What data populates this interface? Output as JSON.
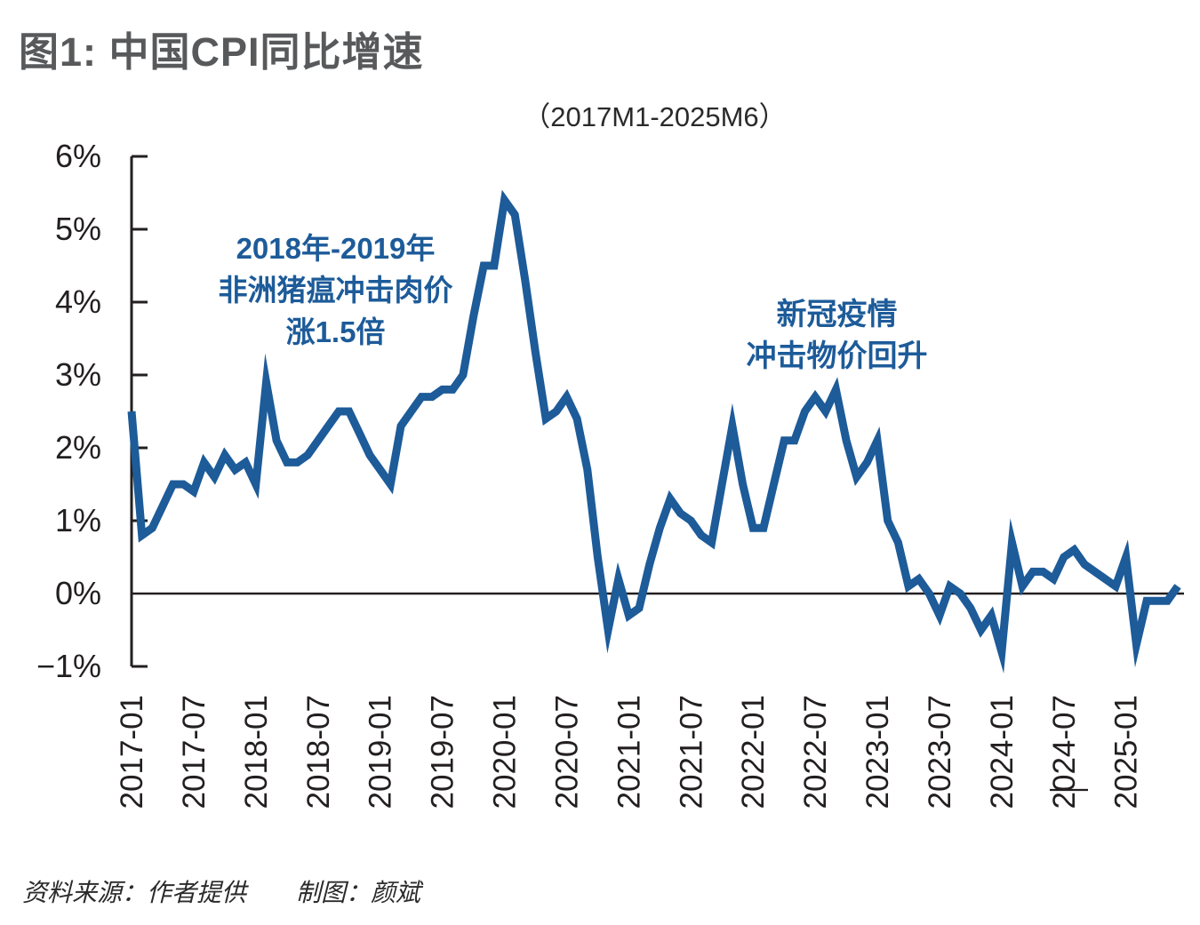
{
  "page": {
    "title": "图1: 中国CPI同比增速",
    "subtitle": "（2017M1-2025M6）",
    "footer": {
      "source_label": "资料来源：作者提供",
      "credit_label": "制图：颜斌"
    }
  },
  "annotations": {
    "swine_fever": {
      "lines": [
        "2018年-2019年",
        "非洲猪瘟冲击肉价",
        "涨1.5倍"
      ]
    },
    "covid": {
      "lines": [
        "新冠疫情",
        "冲击物价回升"
      ]
    }
  },
  "colors": {
    "line": "#1d5b99",
    "axis": "#231f20",
    "title": "#58595b",
    "subtitle": "#2a2a2a",
    "annotation": "#1d5b99",
    "footer": "#2b2b2b"
  },
  "chart_data": {
    "type": "line",
    "title": "图1: 中国CPI同比增速",
    "subtitle": "（2017M1-2025M6）",
    "xlabel": "",
    "ylabel": "",
    "ylim": [
      -1,
      6
    ],
    "grid": false,
    "legend": false,
    "zero_baseline": true,
    "y_ticks": [
      {
        "value": 6,
        "label": "6%"
      },
      {
        "value": 5,
        "label": "5%"
      },
      {
        "value": 4,
        "label": "4%"
      },
      {
        "value": 3,
        "label": "3%"
      },
      {
        "value": 2,
        "label": "2%"
      },
      {
        "value": 1,
        "label": "1%"
      },
      {
        "value": 0,
        "label": "0%"
      },
      {
        "value": -1,
        "label": "−1%"
      }
    ],
    "x_tick_labels": [
      "2017-01",
      "2017-07",
      "2018-01",
      "2018-07",
      "2019-01",
      "2019-07",
      "2020-01",
      "2020-07",
      "2021-01",
      "2021-07",
      "2022-01",
      "2022-07",
      "2023-01",
      "2023-07",
      "2024-01",
      "2024-07",
      "2025-01"
    ],
    "x_tick_month_step": 6,
    "x": [
      "2017-01",
      "2017-02",
      "2017-03",
      "2017-04",
      "2017-05",
      "2017-06",
      "2017-07",
      "2017-08",
      "2017-09",
      "2017-10",
      "2017-11",
      "2017-12",
      "2018-01",
      "2018-02",
      "2018-03",
      "2018-04",
      "2018-05",
      "2018-06",
      "2018-07",
      "2018-08",
      "2018-09",
      "2018-10",
      "2018-11",
      "2018-12",
      "2019-01",
      "2019-02",
      "2019-03",
      "2019-04",
      "2019-05",
      "2019-06",
      "2019-07",
      "2019-08",
      "2019-09",
      "2019-10",
      "2019-11",
      "2019-12",
      "2020-01",
      "2020-02",
      "2020-03",
      "2020-04",
      "2020-05",
      "2020-06",
      "2020-07",
      "2020-08",
      "2020-09",
      "2020-10",
      "2020-11",
      "2020-12",
      "2021-01",
      "2021-02",
      "2021-03",
      "2021-04",
      "2021-05",
      "2021-06",
      "2021-07",
      "2021-08",
      "2021-09",
      "2021-10",
      "2021-11",
      "2021-12",
      "2022-01",
      "2022-02",
      "2022-03",
      "2022-04",
      "2022-05",
      "2022-06",
      "2022-07",
      "2022-08",
      "2022-09",
      "2022-10",
      "2022-11",
      "2022-12",
      "2023-01",
      "2023-02",
      "2023-03",
      "2023-04",
      "2023-05",
      "2023-06",
      "2023-07",
      "2023-08",
      "2023-09",
      "2023-10",
      "2023-11",
      "2023-12",
      "2024-01",
      "2024-02",
      "2024-03",
      "2024-04",
      "2024-05",
      "2024-06",
      "2024-07",
      "2024-08",
      "2024-09",
      "2024-10",
      "2024-11",
      "2024-12",
      "2025-01",
      "2025-02",
      "2025-03",
      "2025-04",
      "2025-05",
      "2025-06"
    ],
    "series": [
      {
        "name": "中国CPI同比增速",
        "color": "#1d5b99",
        "unit": "%",
        "values": [
          2.5,
          0.8,
          0.9,
          1.2,
          1.5,
          1.5,
          1.4,
          1.8,
          1.6,
          1.9,
          1.7,
          1.8,
          1.5,
          2.9,
          2.1,
          1.8,
          1.8,
          1.9,
          2.1,
          2.3,
          2.5,
          2.5,
          2.2,
          1.9,
          1.7,
          1.5,
          2.3,
          2.5,
          2.7,
          2.7,
          2.8,
          2.8,
          3.0,
          3.8,
          4.5,
          4.5,
          5.4,
          5.2,
          4.3,
          3.3,
          2.4,
          2.5,
          2.7,
          2.4,
          1.7,
          0.5,
          -0.5,
          0.2,
          -0.3,
          -0.2,
          0.4,
          0.9,
          1.3,
          1.1,
          1.0,
          0.8,
          0.7,
          1.5,
          2.3,
          1.5,
          0.9,
          0.9,
          1.5,
          2.1,
          2.1,
          2.5,
          2.7,
          2.5,
          2.8,
          2.1,
          1.6,
          1.8,
          2.1,
          1.0,
          0.7,
          0.1,
          0.2,
          0.0,
          -0.3,
          0.1,
          0.0,
          -0.2,
          -0.5,
          -0.3,
          -0.8,
          0.7,
          0.1,
          0.3,
          0.3,
          0.2,
          0.5,
          0.6,
          0.4,
          0.3,
          0.2,
          0.1,
          0.5,
          -0.7,
          -0.1,
          -0.1,
          -0.1,
          0.1
        ]
      }
    ]
  }
}
